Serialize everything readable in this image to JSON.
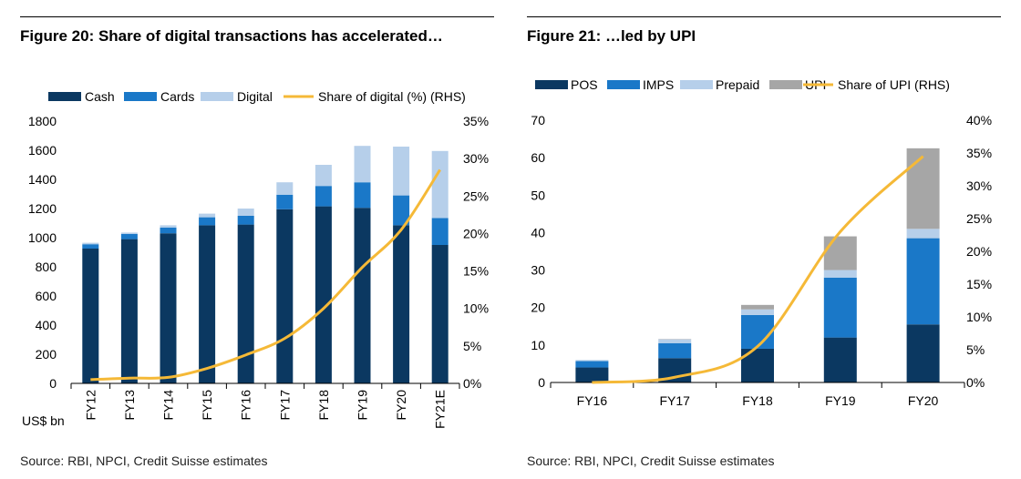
{
  "colors": {
    "cash": "#0b3861",
    "cards": "#1a78c8",
    "digital": "#b6cfea",
    "pos": "#0b3861",
    "imps": "#1a78c8",
    "prepaid": "#b6cfea",
    "upi": "#a6a6a6",
    "line": "#f5b937"
  },
  "left": {
    "title": "Figure 20: Share of digital transactions has accelerated…",
    "source": "Source: RBI, NPCI, Credit Suisse estimates",
    "unit_label": "US$ bn"
  },
  "right": {
    "title": "Figure 21: …led by UPI",
    "source": "Source: RBI, NPCI, Credit Suisse estimates"
  },
  "chart_data": [
    {
      "type": "bar",
      "stacked": true,
      "categories": [
        "FY12",
        "FY13",
        "FY14",
        "FY15",
        "FY16",
        "FY17",
        "FY18",
        "FY19",
        "FY20",
        "FY21E"
      ],
      "series": [
        {
          "name": "Cash",
          "values": [
            925,
            990,
            1030,
            1085,
            1090,
            1195,
            1215,
            1205,
            1085,
            950
          ]
        },
        {
          "name": "Cards",
          "values": [
            30,
            35,
            40,
            55,
            60,
            100,
            140,
            175,
            205,
            185
          ]
        },
        {
          "name": "Digital",
          "values": [
            10,
            10,
            15,
            25,
            50,
            85,
            145,
            250,
            335,
            460
          ]
        }
      ],
      "line": {
        "name": "Share of digital (%) (RHS)",
        "values": [
          0.5,
          0.7,
          0.8,
          2.0,
          3.8,
          6.0,
          10.0,
          15.5,
          20.5,
          28.5
        ]
      },
      "ylim": [
        0,
        1800
      ],
      "yticks": [
        0,
        200,
        400,
        600,
        800,
        1000,
        1200,
        1400,
        1600,
        1800
      ],
      "y2lim": [
        0,
        35
      ],
      "y2ticks": [
        "0%",
        "5%",
        "10%",
        "15%",
        "20%",
        "25%",
        "30%",
        "35%"
      ],
      "legend": "top",
      "grid": false
    },
    {
      "type": "bar",
      "stacked": true,
      "categories": [
        "FY16",
        "FY17",
        "FY18",
        "FY19",
        "FY20"
      ],
      "series": [
        {
          "name": "POS",
          "values": [
            4,
            6.5,
            9,
            12,
            15.5
          ]
        },
        {
          "name": "IMPS",
          "values": [
            1.7,
            4,
            9,
            16,
            23
          ]
        },
        {
          "name": "Prepaid",
          "values": [
            0.3,
            1,
            1.5,
            2,
            2.5
          ]
        },
        {
          "name": "UPI",
          "values": [
            0,
            0.1,
            1.2,
            9,
            21.5
          ]
        }
      ],
      "line": {
        "name": "Share of UPI (RHS)",
        "values": [
          0.0,
          0.8,
          5.5,
          23.0,
          34.5
        ]
      },
      "ylim": [
        0,
        70
      ],
      "yticks": [
        0,
        10,
        20,
        30,
        40,
        50,
        60,
        70
      ],
      "y2lim": [
        0,
        40
      ],
      "y2ticks": [
        "0%",
        "5%",
        "10%",
        "15%",
        "20%",
        "25%",
        "30%",
        "35%",
        "40%"
      ],
      "legend": "top",
      "grid": false
    }
  ]
}
